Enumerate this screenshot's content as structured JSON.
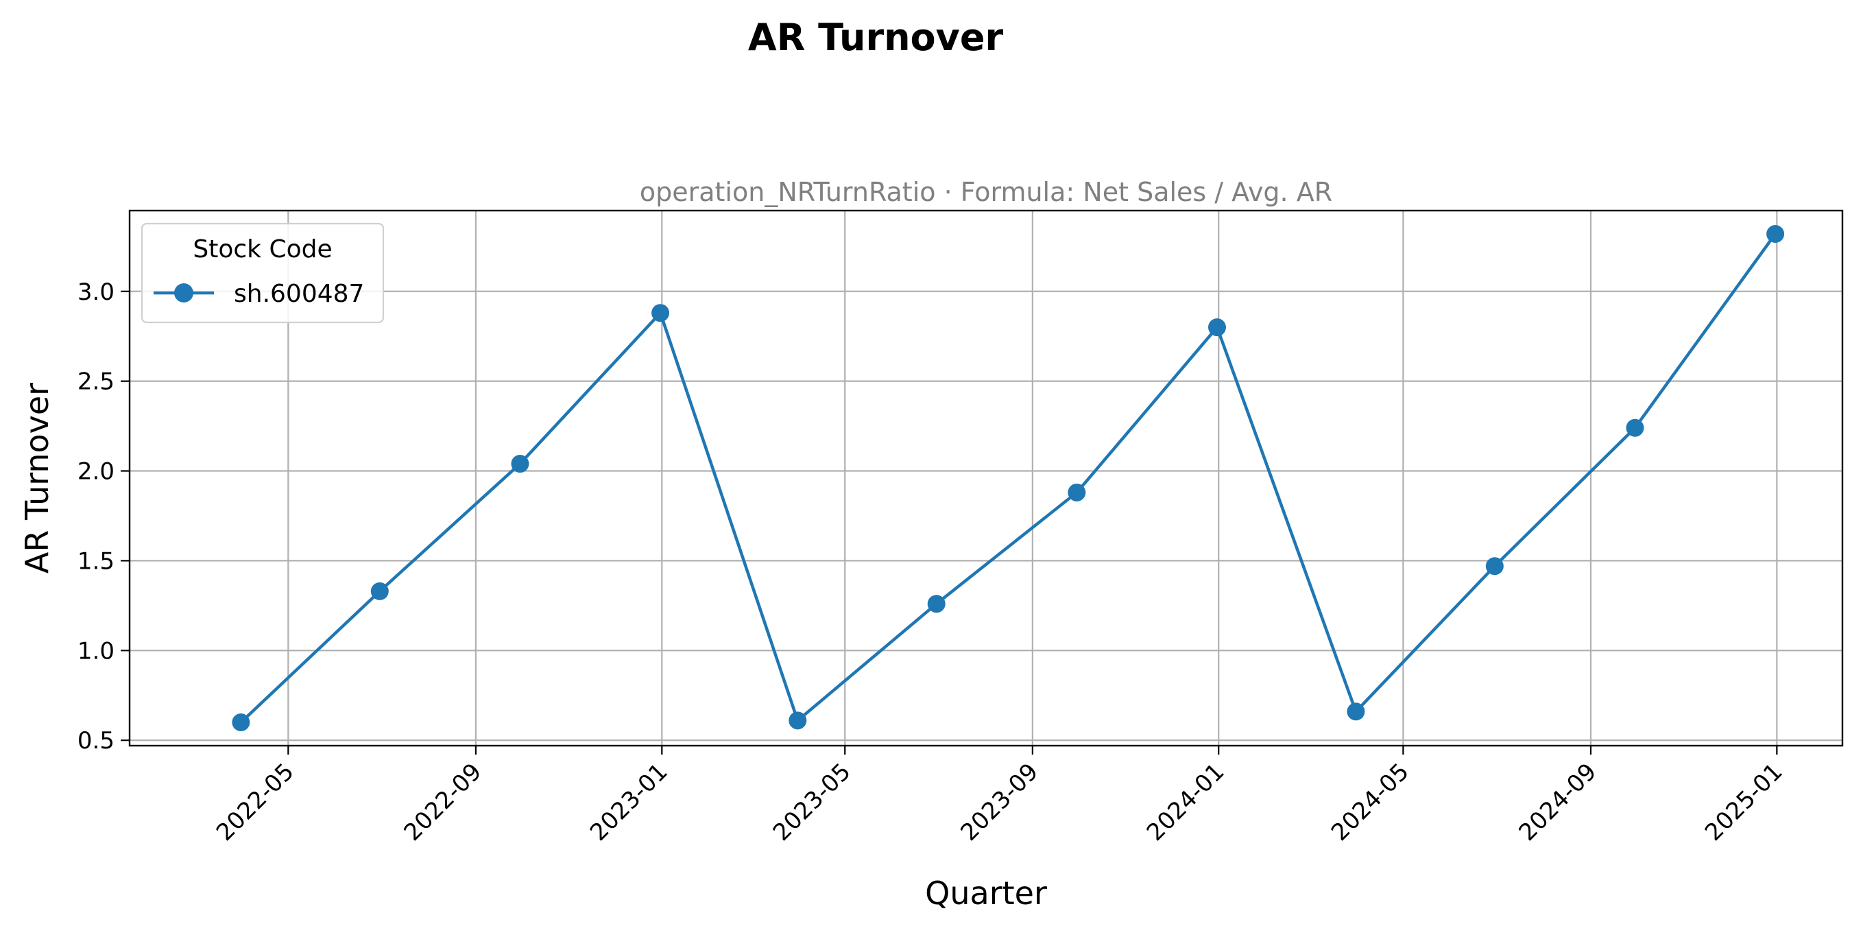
{
  "chart_data": {
    "type": "line",
    "title": "AR Turnover",
    "subtitle": "operation_NRTurnRatio · Formula: Net Sales / Avg. AR",
    "xlabel": "Quarter",
    "ylabel": "AR Turnover",
    "x_type": "date",
    "xlim": [
      "2022-01-17",
      "2025-02-13"
    ],
    "ylim": [
      0.47,
      3.45
    ],
    "x_ticks": [
      "2022-05-01",
      "2022-09-01",
      "2023-01-01",
      "2023-05-01",
      "2023-09-01",
      "2024-01-01",
      "2024-05-01",
      "2024-09-01",
      "2025-01-01"
    ],
    "x_tick_labels": [
      "2022-05",
      "2022-09",
      "2023-01",
      "2023-05",
      "2023-09",
      "2024-01",
      "2024-05",
      "2024-09",
      "2025-01"
    ],
    "y_ticks": [
      0.5,
      1.0,
      1.5,
      2.0,
      2.5,
      3.0
    ],
    "y_tick_labels": [
      "0.5",
      "1.0",
      "1.5",
      "2.0",
      "2.5",
      "3.0"
    ],
    "grid": true,
    "legend": {
      "title": "Stock Code",
      "placement": "top-left"
    },
    "x": [
      "2022-03-31",
      "2022-06-30",
      "2022-09-30",
      "2022-12-31",
      "2023-03-31",
      "2023-06-30",
      "2023-09-30",
      "2023-12-31",
      "2024-03-31",
      "2024-06-30",
      "2024-09-30",
      "2024-12-31"
    ],
    "series": [
      {
        "name": "sh.600487",
        "color": "#1f77b4",
        "marker": "circle",
        "values": [
          0.6,
          1.33,
          2.04,
          2.88,
          0.61,
          1.26,
          1.88,
          2.8,
          0.66,
          1.47,
          2.24,
          3.32
        ]
      }
    ]
  }
}
